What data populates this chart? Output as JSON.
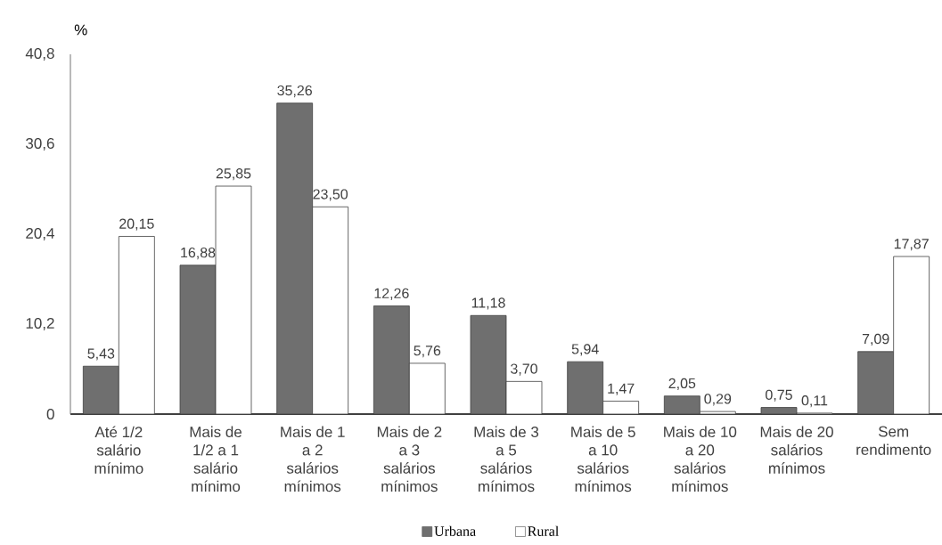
{
  "chart_data": {
    "type": "bar",
    "ylabel": "%",
    "categories": [
      "Até 1/2 salário mínimo",
      "Mais de 1/2 a 1 salário mínimo",
      "Mais de 1 a 2 salários mínimos",
      "Mais de 2 a 3 salários mínimos",
      "Mais de 3 a 5 salários mínimos",
      "Mais de 5 a 10 salários mínimos",
      "Mais de 10 a 20 salários mínimos",
      "Mais de 20 salários mínimos",
      "Sem rendimento"
    ],
    "series": [
      {
        "name": "Urbana",
        "color": "#6f6f6f",
        "values": [
          5.43,
          16.88,
          35.26,
          12.26,
          11.18,
          5.94,
          2.05,
          0.75,
          7.09
        ],
        "value_labels": [
          "5,43",
          "16,88",
          "35,26",
          "12,26",
          "11,18",
          "5,94",
          "2,05",
          "0,75",
          "7,09"
        ]
      },
      {
        "name": "Rural",
        "color": "#ffffff",
        "values": [
          20.15,
          25.85,
          23.5,
          5.76,
          3.7,
          1.47,
          0.29,
          0.11,
          17.87
        ],
        "value_labels": [
          "20,15",
          "25,85",
          "23,50",
          "5,76",
          "3,70",
          "1,47",
          "0,29",
          "0,11",
          "17,87"
        ]
      }
    ],
    "ylim": [
      0,
      40.8
    ],
    "yticks": [
      0,
      {
        "value": 10.2,
        "label": "10,2"
      },
      {
        "value": 20.4,
        "label": "20,4"
      },
      {
        "value": 30.6,
        "label": "30,6"
      },
      {
        "value": 40.8,
        "label": "40,8"
      }
    ],
    "legend": "bottom"
  }
}
